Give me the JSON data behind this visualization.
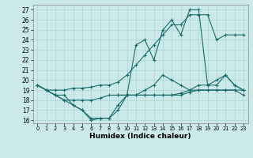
{
  "xlabel": "Humidex (Indice chaleur)",
  "background_color": "#cce9e9",
  "grid_color": "#aad4d4",
  "line_color": "#1a6b6b",
  "xlim": [
    -0.5,
    23.5
  ],
  "ylim": [
    15.7,
    27.5
  ],
  "yticks": [
    16,
    17,
    18,
    19,
    20,
    21,
    22,
    23,
    24,
    25,
    26,
    27
  ],
  "xticks": [
    0,
    1,
    2,
    3,
    4,
    5,
    6,
    7,
    8,
    9,
    10,
    11,
    12,
    13,
    14,
    15,
    16,
    17,
    18,
    19,
    20,
    21,
    22,
    23
  ],
  "lines": [
    {
      "x": [
        0,
        1,
        2,
        3,
        4,
        5,
        6,
        7,
        8,
        9,
        10,
        11,
        12,
        13,
        14,
        15,
        16,
        17,
        18,
        19,
        20,
        21,
        22,
        23
      ],
      "y": [
        19.5,
        19.0,
        19.0,
        19.0,
        19.2,
        19.2,
        19.3,
        19.5,
        19.5,
        19.8,
        20.5,
        21.5,
        22.5,
        23.5,
        24.5,
        25.5,
        25.5,
        26.5,
        26.5,
        26.5,
        24.0,
        24.5,
        24.5,
        24.5
      ]
    },
    {
      "x": [
        9,
        10,
        11,
        12,
        13,
        14,
        15,
        16,
        17,
        18,
        19,
        20,
        21,
        22,
        23
      ],
      "y": [
        18.5,
        18.5,
        23.5,
        24.0,
        22.0,
        25.0,
        26.0,
        24.5,
        27.0,
        27.0,
        19.5,
        20.0,
        20.5,
        19.5,
        19.0
      ]
    },
    {
      "x": [
        0,
        1,
        2,
        3,
        4,
        5,
        6,
        7,
        8,
        9,
        10,
        11,
        12,
        13,
        14,
        15,
        16,
        17,
        18,
        19,
        20,
        21,
        22,
        23
      ],
      "y": [
        19.5,
        19.0,
        18.5,
        18.0,
        18.0,
        18.0,
        18.0,
        18.2,
        18.5,
        18.5,
        18.5,
        18.5,
        18.5,
        18.5,
        18.5,
        18.5,
        18.7,
        19.0,
        19.0,
        19.0,
        19.0,
        19.0,
        19.0,
        19.0
      ]
    },
    {
      "x": [
        0,
        1,
        2,
        3,
        4,
        5,
        6,
        7,
        8,
        9,
        10,
        11,
        12,
        13,
        14,
        15,
        16,
        17,
        18,
        19,
        20,
        21,
        22,
        23
      ],
      "y": [
        19.5,
        19.0,
        18.5,
        18.5,
        17.5,
        17.0,
        16.0,
        16.2,
        16.2,
        17.5,
        18.5,
        18.5,
        19.0,
        19.5,
        20.5,
        20.0,
        19.5,
        19.0,
        19.5,
        19.5,
        19.5,
        20.5,
        19.5,
        19.0
      ]
    },
    {
      "x": [
        0,
        1,
        2,
        3,
        4,
        5,
        6,
        7,
        8,
        9,
        10,
        11,
        12,
        13,
        14,
        15,
        16,
        17,
        18,
        19,
        20,
        21,
        22,
        23
      ],
      "y": [
        19.5,
        19.0,
        18.5,
        18.0,
        17.5,
        17.0,
        16.2,
        16.2,
        16.2,
        17.0,
        18.5,
        18.5,
        18.5,
        18.5,
        18.5,
        18.5,
        18.5,
        18.8,
        19.0,
        19.0,
        19.0,
        19.0,
        19.0,
        18.5
      ]
    }
  ]
}
